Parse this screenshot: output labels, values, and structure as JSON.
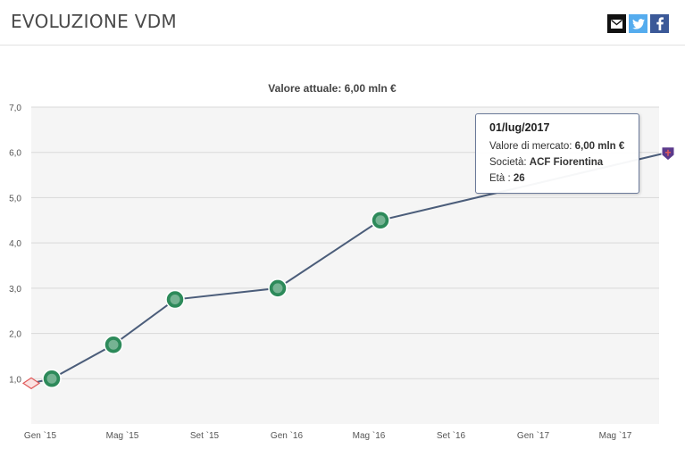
{
  "header": {
    "title": "EVOLUZIONE VDM",
    "share": [
      {
        "name": "mail",
        "icon": "envelope-icon"
      },
      {
        "name": "twitter",
        "icon": "twitter-bird-icon"
      },
      {
        "name": "facebook",
        "icon": "facebook-f-icon"
      }
    ]
  },
  "tooltip": {
    "date": "01/lug/2017",
    "market_value_label": "Valore di mercato:",
    "market_value": "6,00 mln €",
    "club_label": "Società:",
    "club": "ACF Fiorentina",
    "age_label": "Età :",
    "age": "26"
  },
  "colors": {
    "line": "#4b5d7a",
    "marker_green": "#2d8a5a",
    "marker_red": "#e05a5a",
    "marker_purple": "#5b3a8c",
    "grid": "#d9d9d9",
    "plot_bg": "#f5f5f5"
  },
  "chart_data": {
    "type": "line",
    "title": "Valore attuale: 6,00 mln €",
    "xlabel": "",
    "ylabel": "",
    "ylim": [
      0,
      7
    ],
    "yticks": [
      1,
      2,
      3,
      4,
      5,
      6,
      7
    ],
    "ytick_labels": [
      "1,0",
      "2,0",
      "3,0",
      "4,0",
      "5,0",
      "6,0",
      "7,0"
    ],
    "xticks": [
      "Gen '15",
      "Mag '15",
      "Set '15",
      "Gen '16",
      "Mag '16",
      "Set '16",
      "Gen '17",
      "Mag '17"
    ],
    "xtick_labels": [
      "Gen `15",
      "Mag `15",
      "Set `15",
      "Gen `16",
      "Mag `16",
      "Set `16",
      "Gen `17",
      "Mag `17"
    ],
    "grid": true,
    "series": [
      {
        "points": [
          {
            "x": "2014-12-01",
            "y": 0.9,
            "marker": "club-red"
          },
          {
            "x": "2015-01-01",
            "y": 1.0,
            "marker": "club-green"
          },
          {
            "x": "2015-04-01",
            "y": 1.75,
            "marker": "club-green"
          },
          {
            "x": "2015-07-01",
            "y": 2.75,
            "marker": "club-green"
          },
          {
            "x": "2015-12-01",
            "y": 3.0,
            "marker": "club-green"
          },
          {
            "x": "2016-05-01",
            "y": 4.5,
            "marker": "club-green"
          },
          {
            "x": "2017-07-01",
            "y": 6.0,
            "marker": "club-purple"
          }
        ]
      }
    ]
  }
}
